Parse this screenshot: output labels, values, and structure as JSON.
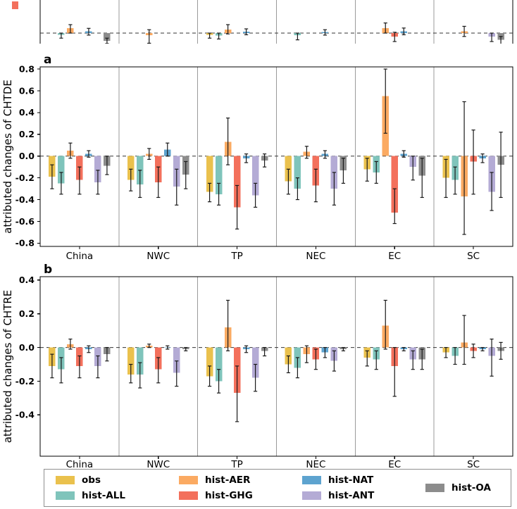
{
  "colors": {
    "obs": "#eac14d",
    "hist-ALL": "#7fc4bb",
    "hist-AER": "#fbaa62",
    "hist-GHG": "#f3705c",
    "hist-NAT": "#5da3cf",
    "hist-ANT": "#b4abd5",
    "hist-OA": "#8c8c8c",
    "errorbar": "#1a1a1a",
    "zero_line": "#333333",
    "separator": "#9a9a9a",
    "spine": "#000000"
  },
  "legend": {
    "columns": [
      [
        {
          "label": "obs",
          "series": "obs"
        },
        {
          "label": "hist-ALL",
          "series": "hist-ALL"
        }
      ],
      [
        {
          "label": "hist-AER",
          "series": "hist-AER"
        },
        {
          "label": "hist-GHG",
          "series": "hist-GHG"
        }
      ],
      [
        {
          "label": "hist-NAT",
          "series": "hist-NAT"
        },
        {
          "label": "hist-ANT",
          "series": "hist-ANT"
        }
      ],
      [
        {
          "label": "hist-OA",
          "series": "hist-OA"
        }
      ]
    ]
  },
  "chart_data": [
    {
      "panel_label": "a",
      "type": "bar",
      "ylabel": "attributed changes of CHTDE",
      "ylim": [
        -0.83,
        0.82
      ],
      "yticks": [
        0.8,
        0.6,
        0.4,
        0.2,
        0.0,
        -0.2,
        -0.4,
        -0.6,
        -0.8
      ],
      "categories": [
        "China",
        "NWC",
        "TP",
        "NEC",
        "EC",
        "SC"
      ],
      "zero_line_dashed": true,
      "grid": "vertical-group-separators",
      "legend_position": "below-figure",
      "series": [
        {
          "name": "obs",
          "values": [
            -0.19,
            -0.22,
            -0.33,
            -0.23,
            -0.12,
            -0.2
          ],
          "whisker_lo": [
            -0.3,
            -0.32,
            -0.42,
            -0.35,
            -0.23,
            -0.38
          ],
          "whisker_hi": [
            -0.08,
            -0.12,
            -0.25,
            -0.12,
            -0.02,
            -0.03
          ]
        },
        {
          "name": "hist-ALL",
          "values": [
            -0.25,
            -0.26,
            -0.35,
            -0.3,
            -0.15,
            -0.22
          ],
          "whisker_lo": [
            -0.35,
            -0.38,
            -0.45,
            -0.4,
            -0.25,
            -0.35
          ],
          "whisker_hi": [
            -0.15,
            -0.13,
            -0.25,
            -0.2,
            -0.05,
            -0.1
          ]
        },
        {
          "name": "hist-AER",
          "values": [
            0.05,
            0.02,
            0.13,
            0.04,
            0.55,
            -0.37
          ],
          "whisker_lo": [
            -0.02,
            -0.03,
            -0.08,
            -0.02,
            0.21,
            -0.72
          ],
          "whisker_hi": [
            0.12,
            0.07,
            0.35,
            0.09,
            0.8,
            0.5
          ]
        },
        {
          "name": "hist-GHG",
          "values": [
            -0.22,
            -0.24,
            -0.47,
            -0.27,
            -0.52,
            -0.05
          ],
          "whisker_lo": [
            -0.35,
            -0.38,
            -0.67,
            -0.42,
            -0.62,
            -0.35
          ],
          "whisker_hi": [
            -0.1,
            -0.1,
            -0.27,
            -0.12,
            -0.3,
            0.24
          ]
        },
        {
          "name": "hist-NAT",
          "values": [
            0.02,
            0.06,
            -0.02,
            0.02,
            0.02,
            -0.02
          ],
          "whisker_lo": [
            -0.01,
            0.0,
            -0.06,
            -0.02,
            -0.01,
            -0.06
          ],
          "whisker_hi": [
            0.05,
            0.12,
            0.02,
            0.05,
            0.05,
            0.02
          ]
        },
        {
          "name": "hist-ANT",
          "values": [
            -0.24,
            -0.28,
            -0.36,
            -0.3,
            -0.1,
            -0.33
          ],
          "whisker_lo": [
            -0.35,
            -0.45,
            -0.47,
            -0.45,
            -0.22,
            -0.5
          ],
          "whisker_hi": [
            -0.13,
            -0.12,
            -0.25,
            -0.15,
            0.0,
            -0.15
          ]
        },
        {
          "name": "hist-OA",
          "values": [
            -0.09,
            -0.17,
            -0.04,
            -0.13,
            -0.18,
            -0.08
          ],
          "whisker_lo": [
            -0.17,
            -0.3,
            -0.1,
            -0.25,
            -0.38,
            -0.38
          ],
          "whisker_hi": [
            0.0,
            -0.05,
            0.02,
            -0.02,
            -0.02,
            0.22
          ]
        }
      ]
    },
    {
      "panel_label": "b",
      "type": "bar",
      "ylabel": "attributed changes of CHTRE",
      "ylim": [
        -0.645,
        0.42
      ],
      "yticks": [
        0.4,
        0.2,
        0.0,
        -0.2,
        -0.4
      ],
      "categories": [
        "China",
        "NWC",
        "TP",
        "NEC",
        "EC",
        "SC"
      ],
      "zero_line_dashed": true,
      "grid": "vertical-group-separators",
      "legend_position": "below-figure",
      "series": [
        {
          "name": "obs",
          "values": [
            -0.11,
            -0.16,
            -0.17,
            -0.1,
            -0.06,
            -0.03
          ],
          "whisker_lo": [
            -0.18,
            -0.21,
            -0.23,
            -0.15,
            -0.11,
            -0.06
          ],
          "whisker_hi": [
            -0.04,
            -0.1,
            -0.11,
            -0.05,
            -0.02,
            0.0
          ]
        },
        {
          "name": "hist-ALL",
          "values": [
            -0.13,
            -0.16,
            -0.2,
            -0.12,
            -0.07,
            -0.05
          ],
          "whisker_lo": [
            -0.21,
            -0.24,
            -0.27,
            -0.18,
            -0.13,
            -0.1
          ],
          "whisker_hi": [
            -0.06,
            -0.09,
            -0.13,
            -0.06,
            -0.02,
            0.0
          ]
        },
        {
          "name": "hist-AER",
          "values": [
            0.02,
            0.01,
            0.12,
            -0.04,
            0.13,
            0.03
          ],
          "whisker_lo": [
            -0.01,
            0.0,
            -0.02,
            -0.09,
            -0.01,
            -0.1
          ],
          "whisker_hi": [
            0.05,
            0.02,
            0.28,
            0.01,
            0.28,
            0.19
          ]
        },
        {
          "name": "hist-GHG",
          "values": [
            -0.11,
            -0.13,
            -0.27,
            -0.07,
            -0.11,
            -0.02
          ],
          "whisker_lo": [
            -0.18,
            -0.21,
            -0.44,
            -0.13,
            -0.29,
            -0.06
          ],
          "whisker_hi": [
            -0.05,
            -0.06,
            -0.11,
            -0.01,
            0.0,
            0.02
          ]
        },
        {
          "name": "hist-NAT",
          "values": [
            -0.01,
            0.0,
            -0.01,
            -0.03,
            -0.01,
            -0.01
          ],
          "whisker_lo": [
            -0.03,
            -0.01,
            -0.03,
            -0.06,
            -0.02,
            -0.02
          ],
          "whisker_hi": [
            0.01,
            0.01,
            0.01,
            0.0,
            0.0,
            0.0
          ]
        },
        {
          "name": "hist-ANT",
          "values": [
            -0.11,
            -0.15,
            -0.18,
            -0.08,
            -0.07,
            -0.05
          ],
          "whisker_lo": [
            -0.18,
            -0.23,
            -0.26,
            -0.14,
            -0.13,
            -0.17
          ],
          "whisker_hi": [
            -0.05,
            -0.08,
            -0.1,
            -0.02,
            -0.02,
            0.05
          ]
        },
        {
          "name": "hist-OA",
          "values": [
            -0.04,
            -0.01,
            -0.02,
            -0.01,
            -0.07,
            -0.02
          ],
          "whisker_lo": [
            -0.08,
            -0.02,
            -0.05,
            -0.02,
            -0.13,
            -0.07
          ],
          "whisker_hi": [
            0.0,
            0.0,
            0.0,
            0.0,
            -0.01,
            0.03
          ]
        }
      ]
    }
  ],
  "top_strip": {
    "description": "bottom edge of a cropped panel above the visible figure, zero dashed line with small bar fragments",
    "categories": [
      "China",
      "NWC",
      "TP",
      "NEC",
      "EC",
      "SC"
    ],
    "corner_fragment_series": "hist-GHG",
    "series": [
      {
        "name": "obs",
        "values": [
          null,
          null,
          -0.01,
          null,
          null,
          null
        ],
        "whisker_lo": [
          null,
          null,
          -0.03,
          null,
          null,
          null
        ],
        "whisker_hi": [
          null,
          null,
          0.0,
          null,
          null,
          null
        ]
      },
      {
        "name": "hist-ALL",
        "values": [
          -0.01,
          null,
          -0.015,
          -0.012,
          null,
          null
        ],
        "whisker_lo": [
          -0.03,
          null,
          -0.035,
          -0.04,
          null,
          null
        ],
        "whisker_hi": [
          0.0,
          null,
          0.0,
          0.0,
          null,
          null
        ]
      },
      {
        "name": "hist-AER",
        "values": [
          0.03,
          -0.012,
          0.02,
          null,
          0.03,
          0.01
        ],
        "whisker_lo": [
          0.0,
          -0.06,
          -0.005,
          null,
          0.0,
          -0.02
        ],
        "whisker_hi": [
          0.05,
          0.02,
          0.05,
          null,
          0.06,
          0.04
        ]
      },
      {
        "name": "hist-GHG",
        "values": [
          null,
          null,
          null,
          null,
          -0.02,
          null
        ],
        "whisker_lo": [
          null,
          null,
          null,
          null,
          -0.05,
          null
        ],
        "whisker_hi": [
          null,
          null,
          null,
          null,
          0.005,
          null
        ]
      },
      {
        "name": "hist-NAT",
        "values": [
          0.01,
          null,
          0.008,
          0.006,
          0.01,
          null
        ],
        "whisker_lo": [
          -0.012,
          null,
          -0.01,
          -0.012,
          -0.01,
          null
        ],
        "whisker_hi": [
          0.028,
          null,
          0.025,
          0.02,
          0.03,
          null
        ]
      },
      {
        "name": "hist-ANT",
        "values": [
          null,
          null,
          null,
          null,
          null,
          -0.02
        ],
        "whisker_lo": [
          null,
          null,
          null,
          null,
          null,
          -0.05
        ],
        "whisker_hi": [
          null,
          null,
          null,
          null,
          null,
          0.0
        ]
      },
      {
        "name": "hist-OA",
        "values": [
          -0.045,
          null,
          null,
          null,
          null,
          -0.04
        ],
        "whisker_lo": [
          -0.062,
          null,
          null,
          null,
          null,
          -0.07
        ],
        "whisker_hi": [
          -0.03,
          null,
          null,
          null,
          null,
          -0.02
        ]
      }
    ]
  }
}
